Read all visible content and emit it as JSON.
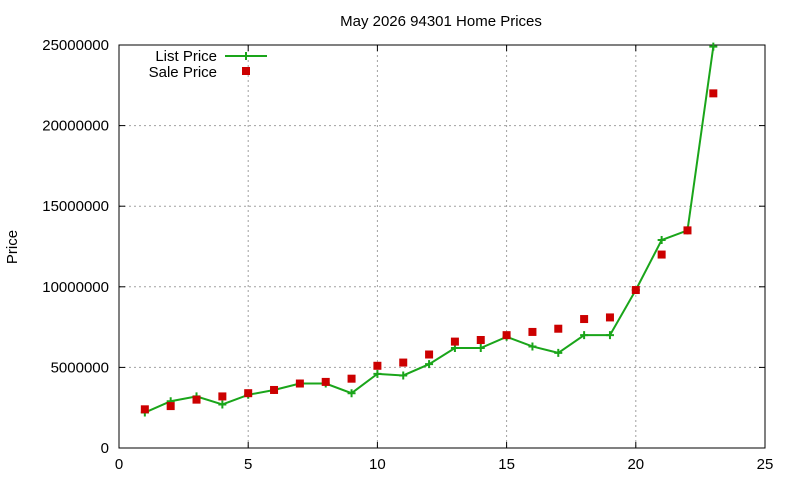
{
  "chart_data": {
    "type": "line",
    "title": "May 2026 94301 Home Prices",
    "xlabel": "",
    "ylabel": "Price",
    "xlim": [
      0,
      25
    ],
    "ylim": [
      0,
      25000000
    ],
    "x_ticks": [
      "0",
      "5",
      "10",
      "15",
      "20",
      "25"
    ],
    "y_ticks": [
      "0",
      "5000000",
      "10000000",
      "15000000",
      "20000000",
      "25000000"
    ],
    "grid": true,
    "legend_position": "top-left",
    "series": [
      {
        "name": "List Price",
        "style": "line-with-plus-markers",
        "color": "#1aa51a",
        "x": [
          1,
          2,
          3,
          4,
          5,
          6,
          7,
          8,
          9,
          10,
          11,
          12,
          13,
          14,
          15,
          16,
          17,
          18,
          19,
          20,
          21,
          22,
          23
        ],
        "y": [
          2200000,
          2900000,
          3200000,
          2700000,
          3300000,
          3600000,
          4000000,
          4000000,
          3400000,
          4600000,
          4500000,
          5200000,
          6200000,
          6200000,
          6900000,
          6300000,
          5900000,
          7000000,
          7000000,
          9800000,
          12900000,
          13500000,
          24900000
        ]
      },
      {
        "name": "Sale Price",
        "style": "square-markers",
        "color": "#cc0000",
        "x": [
          1,
          2,
          3,
          4,
          5,
          6,
          7,
          8,
          9,
          10,
          11,
          12,
          13,
          14,
          15,
          16,
          17,
          18,
          19,
          20,
          21,
          22,
          23
        ],
        "y": [
          2400000,
          2600000,
          3000000,
          3200000,
          3400000,
          3600000,
          4000000,
          4100000,
          4300000,
          5100000,
          5300000,
          5800000,
          6600000,
          6700000,
          7000000,
          7200000,
          7400000,
          8000000,
          8100000,
          9800000,
          12000000,
          13500000,
          22000000
        ]
      }
    ]
  }
}
